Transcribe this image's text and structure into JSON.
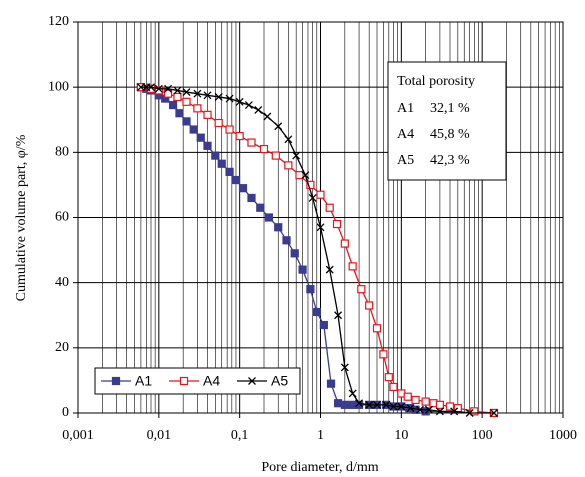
{
  "chart_data": {
    "type": "line",
    "xlabel": "Pore diameter, d/mm",
    "ylabel": "Cumulative volume part, φ/%",
    "log_x": true,
    "grid": true,
    "minor_grid": true,
    "legend": "lower left",
    "xlim": [
      0.001,
      1000
    ],
    "xticks": [
      {
        "value": 0.001,
        "label": "0,001"
      },
      {
        "value": 0.01,
        "label": "0,01"
      },
      {
        "value": 0.1,
        "label": "0,1"
      },
      1,
      10,
      100,
      1000
    ],
    "ylim": [
      0,
      120
    ],
    "yticks": [
      0,
      20,
      40,
      60,
      80,
      100,
      120
    ],
    "annotation": {
      "title": "Total porosity",
      "rows": [
        [
          "A1",
          "32,1 %"
        ],
        [
          "A4",
          "45,8 %"
        ],
        [
          "A5",
          "42,3 %"
        ]
      ]
    },
    "series": [
      {
        "name": "A1",
        "color": "#3b3b8f",
        "marker": "filled-square",
        "x": [
          0.006,
          0.007,
          0.008,
          0.01,
          0.012,
          0.015,
          0.018,
          0.022,
          0.027,
          0.033,
          0.04,
          0.05,
          0.06,
          0.075,
          0.09,
          0.11,
          0.14,
          0.18,
          0.23,
          0.3,
          0.38,
          0.48,
          0.6,
          0.75,
          0.9,
          1.1,
          1.35,
          1.65,
          2,
          2.5,
          3,
          4,
          5,
          6.5,
          8,
          10,
          12.5,
          15,
          20,
          140
        ],
        "values": [
          100,
          99.5,
          99,
          97.5,
          96.5,
          94.5,
          92,
          89.5,
          87,
          84.5,
          82,
          79,
          76.5,
          74,
          71.5,
          69,
          66,
          63,
          60,
          57,
          53,
          49,
          44,
          38,
          31,
          27,
          9,
          3,
          2.5,
          2.5,
          2.5,
          2.5,
          2.5,
          2.5,
          2,
          2,
          1.5,
          1,
          0.5,
          0
        ]
      },
      {
        "name": "A4",
        "color": "#e8141c",
        "marker": "open-square",
        "x": [
          0.006,
          0.008,
          0.01,
          0.013,
          0.017,
          0.022,
          0.03,
          0.04,
          0.055,
          0.075,
          0.1,
          0.14,
          0.2,
          0.28,
          0.4,
          0.55,
          0.75,
          1,
          1.3,
          1.6,
          2,
          2.5,
          3.2,
          4,
          5,
          6,
          7,
          8,
          10,
          12,
          15,
          20,
          25,
          30,
          40,
          50,
          80,
          140
        ],
        "values": [
          100,
          99.5,
          99,
          98,
          97,
          95.5,
          93.5,
          91.5,
          89,
          87,
          85,
          83,
          81,
          79,
          76,
          73,
          70,
          67,
          63,
          58,
          52,
          45,
          38,
          33,
          26,
          18,
          11,
          8,
          6,
          5,
          4,
          3.5,
          3,
          2.5,
          2,
          1.5,
          0.5,
          0
        ]
      },
      {
        "name": "A5",
        "color": "#000000",
        "marker": "cross",
        "x": [
          0.006,
          0.007,
          0.008,
          0.01,
          0.013,
          0.017,
          0.022,
          0.03,
          0.04,
          0.055,
          0.075,
          0.1,
          0.13,
          0.17,
          0.22,
          0.3,
          0.4,
          0.5,
          0.65,
          0.8,
          1,
          1.3,
          1.65,
          2,
          2.5,
          3,
          4,
          5,
          6.5,
          8,
          10,
          13,
          17,
          22,
          30,
          45,
          70,
          140
        ],
        "values": [
          100,
          100,
          100,
          99.5,
          99.5,
          99,
          98.5,
          98,
          97.5,
          97,
          96.5,
          95.5,
          94.5,
          93,
          91,
          88,
          84,
          79,
          73,
          66,
          57,
          44,
          30,
          14,
          6,
          3,
          2.5,
          2.5,
          2.5,
          2,
          2,
          1.5,
          1,
          1,
          0.5,
          0.5,
          0,
          0
        ]
      }
    ]
  }
}
